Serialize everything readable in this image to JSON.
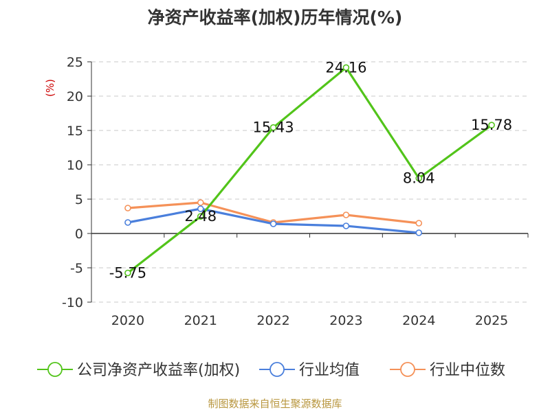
{
  "title": "净资产收益率(加权)历年情况(%)",
  "source": "制图数据来自恒生聚源数据库",
  "chart_data": {
    "type": "line",
    "title": "净资产收益率(加权)历年情况(%)",
    "ylabel": "(%)",
    "xlabel": "",
    "categories": [
      "2020",
      "2021",
      "2022",
      "2023",
      "2024",
      "2025"
    ],
    "ylim": [
      -10,
      25
    ],
    "yticks": [
      25,
      20,
      15,
      10,
      5,
      0,
      -5,
      -10
    ],
    "grid": true,
    "legend_position": "bottom",
    "series": [
      {
        "name": "公司净资产收益率(加权)",
        "color": "#52c41a",
        "values": [
          -5.75,
          2.48,
          15.43,
          24.16,
          8.04,
          15.78
        ],
        "labels": [
          "-5.75",
          "2.48",
          "15.43",
          "24.16",
          "8.04",
          "15.78"
        ]
      },
      {
        "name": "行业均值",
        "color": "#4a7fdc",
        "values": [
          1.6,
          3.6,
          1.4,
          1.1,
          0.1,
          null
        ]
      },
      {
        "name": "行业中位数",
        "color": "#f59158",
        "values": [
          3.7,
          4.5,
          1.6,
          2.7,
          1.5,
          null
        ]
      }
    ]
  }
}
